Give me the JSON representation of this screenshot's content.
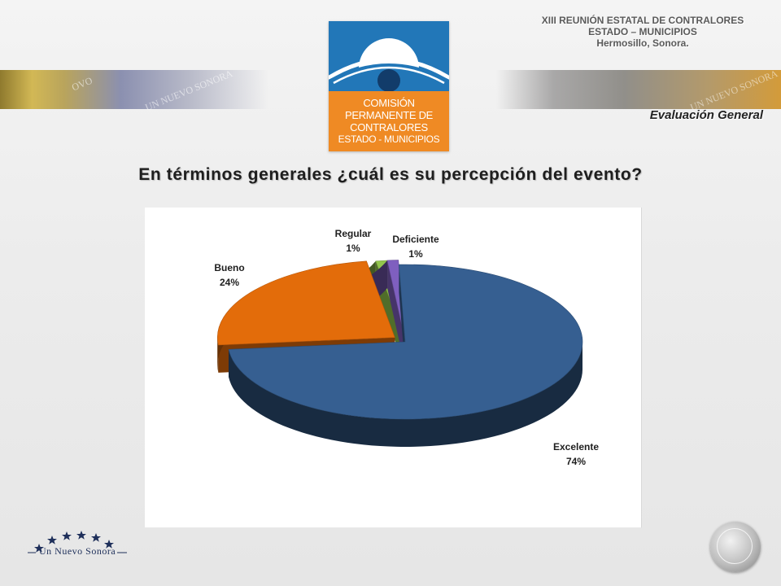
{
  "header": {
    "event_line1": "XIII REUNIÓN ESTATAL DE CONTRALORES",
    "event_line2": "ESTADO – MUNICIPIOS",
    "event_line3": "Hermosillo, Sonora.",
    "section_title": "Evaluación General",
    "band_watermark": "UN NUEVO SONORA",
    "band_watermark_short": "OVO"
  },
  "logo": {
    "lines": [
      "COMISIÓN",
      "PERMANENTE DE",
      "CONTRALORES",
      "ESTADO - MUNICIPIOS"
    ],
    "colors": {
      "top": "#2277b8",
      "bottom": "#ef8a24"
    }
  },
  "question": "En términos generales ¿cuál es su percepción del evento?",
  "chart_data": {
    "type": "pie",
    "title": "",
    "style": "3d-exploded",
    "slices": [
      {
        "name": "Excelente",
        "percent_label": "74%",
        "value": 74,
        "color": "#365f91"
      },
      {
        "name": "Bueno",
        "percent_label": "24%",
        "value": 24,
        "color": "#e36c0a"
      },
      {
        "name": "Regular",
        "percent_label": "1%",
        "value": 1,
        "color": "#92c64c"
      },
      {
        "name": "Deficiente",
        "percent_label": "1%",
        "value": 1,
        "color": "#7f5fbf"
      }
    ],
    "legend": "none (data labels on slices)"
  },
  "footer": {
    "brand": "Un Nuevo Sonora",
    "star_count": 6,
    "seal_icon": "state-seal-icon"
  }
}
